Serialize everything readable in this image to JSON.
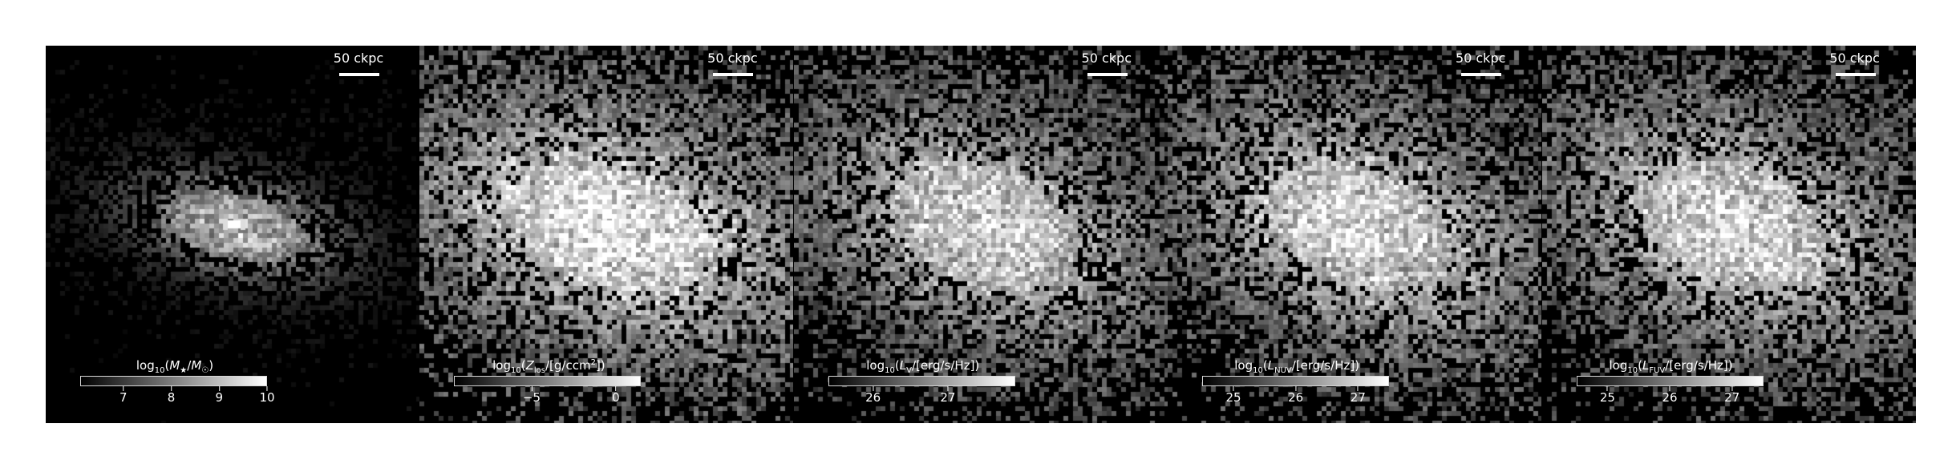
{
  "panels": [
    {
      "scalebar": "50 ckpc",
      "colorbar": {
        "prefix": "log",
        "sub": "10",
        "body": "(M★/M☉)",
        "ticks": [
          "7",
          "8",
          "9",
          "10"
        ],
        "range": [
          6.1,
          10
        ]
      },
      "map": {
        "center": "dense bright core, faint diffuse halo",
        "spread": "small"
      }
    },
    {
      "scalebar": "50 ckpc",
      "colorbar": {
        "prefix": "log",
        "sub": "10",
        "body": "(Z_los/[g/ccm²])",
        "ticks": [
          "−5",
          "0"
        ],
        "range": [
          -9.6,
          1.5
        ]
      },
      "map": {
        "center": "bright core, extended gray envelope",
        "spread": "large"
      }
    },
    {
      "scalebar": "50 ckpc",
      "colorbar": {
        "prefix": "log",
        "sub": "10",
        "body": "(L_V/[erg/s/Hz])",
        "ticks": [
          "26",
          "27"
        ],
        "range": [
          25.4,
          27.9
        ]
      },
      "map": {
        "center": "bright diffuse core",
        "spread": "large"
      }
    },
    {
      "scalebar": "50 ckpc",
      "colorbar": {
        "prefix": "log",
        "sub": "10",
        "body": "(L_NUV/[erg/s/Hz])",
        "ticks": [
          "25",
          "26",
          "27"
        ],
        "range": [
          24.5,
          27.5
        ]
      },
      "map": {
        "center": "bright clumpy core",
        "spread": "large"
      }
    },
    {
      "scalebar": "50 ckpc",
      "colorbar": {
        "prefix": "log",
        "sub": "10",
        "body": "(L_FUV/[erg/s/Hz])",
        "ticks": [
          "25",
          "26",
          "27"
        ],
        "range": [
          24.5,
          27.5
        ]
      },
      "map": {
        "center": "bright clumpy core",
        "spread": "large"
      }
    }
  ],
  "colors": {
    "background": "#000000",
    "figure": "#ffffff",
    "text": "#ffffff"
  }
}
